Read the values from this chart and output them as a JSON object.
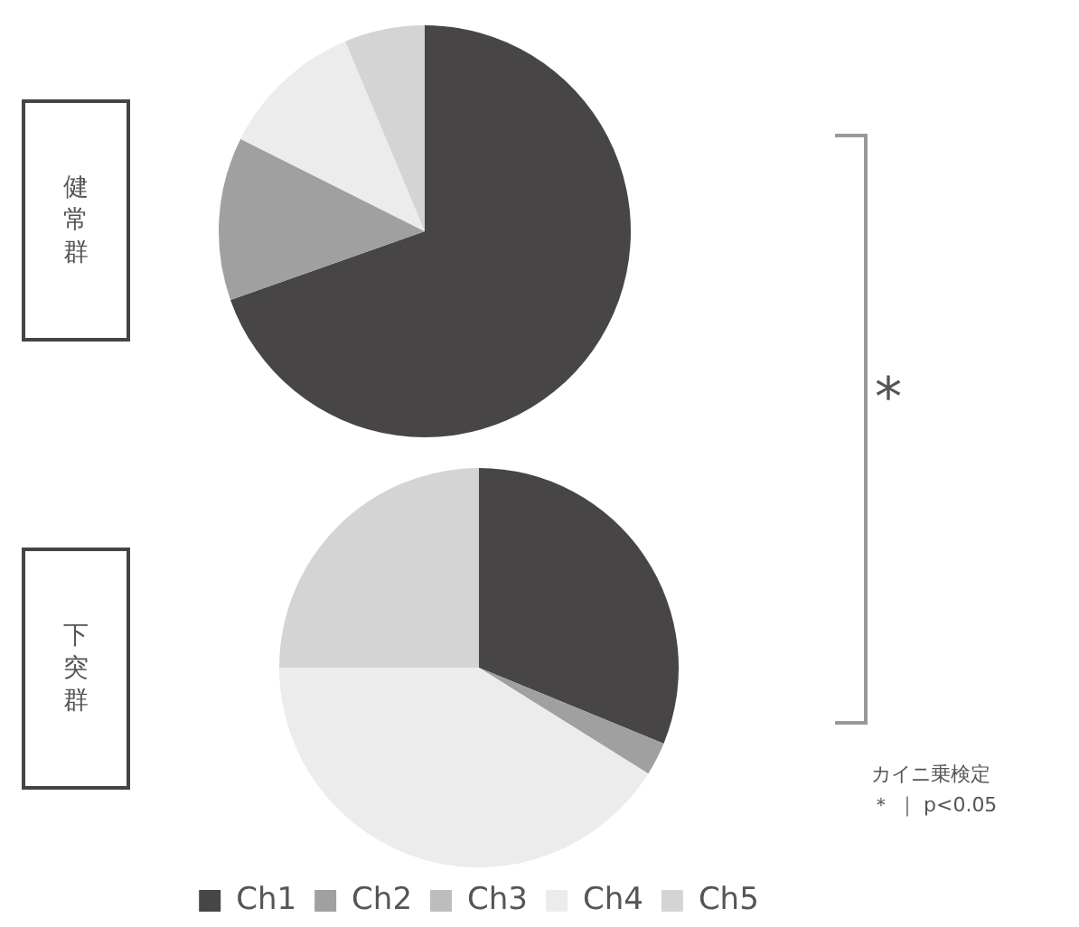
{
  "chart_data": {
    "type": "pie",
    "categories": [
      "Ch1",
      "Ch2",
      "Ch3",
      "Ch4",
      "Ch5"
    ],
    "colors": [
      "#474546",
      "#a0a0a0",
      "#bdbdbd",
      "#ececec",
      "#d4d4d4"
    ],
    "legend": "bottom",
    "series": [
      {
        "name": "健常群",
        "values": [
          69.6,
          12.8,
          0,
          11.3,
          6.3
        ]
      },
      {
        "name": "下突群",
        "values": [
          31.2,
          2.7,
          0,
          41.1,
          25
        ]
      }
    ],
    "annotations": [
      "*",
      "カイニ乗検定",
      "＊ ｜ p<0.05"
    ]
  }
}
